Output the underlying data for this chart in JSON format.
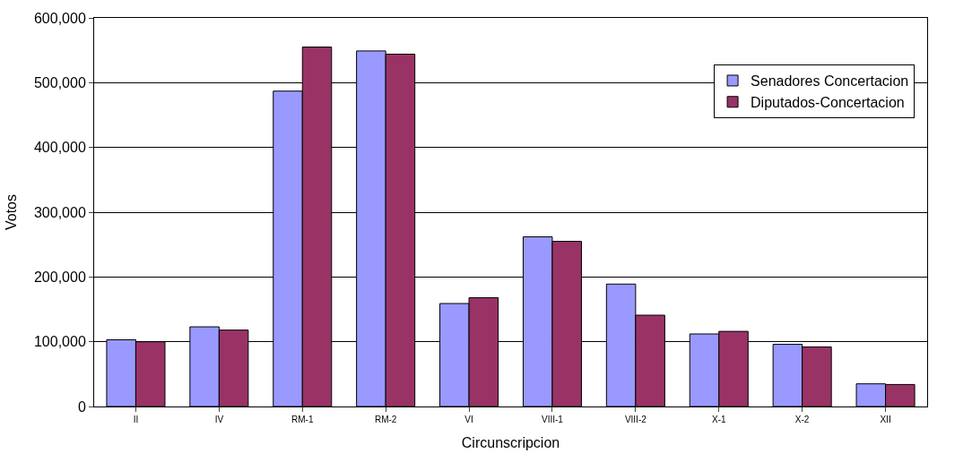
{
  "chart_data": {
    "type": "bar",
    "xlabel": "Circunscripcion",
    "ylabel": "Votos",
    "categories": [
      "II",
      "IV",
      "RM-1",
      "RM-2",
      "VI",
      "VIII-1",
      "VIII-2",
      "X-1",
      "X-2",
      "XII"
    ],
    "series": [
      {
        "name": "Senadores Concertacion",
        "color": "#9999ff",
        "values": [
          103000,
          123000,
          487000,
          549000,
          159000,
          262000,
          189000,
          112000,
          96000,
          35000
        ]
      },
      {
        "name": "Diputados-Concertacion",
        "color": "#993366",
        "values": [
          100000,
          118000,
          555000,
          544000,
          168000,
          255000,
          141000,
          116000,
          92000,
          34000
        ]
      }
    ],
    "ylim": [
      0,
      600000
    ],
    "yticks": [
      {
        "value": 0,
        "label": "0"
      },
      {
        "value": 100000,
        "label": "100,000"
      },
      {
        "value": 200000,
        "label": "200,000"
      },
      {
        "value": 300000,
        "label": "300,000"
      },
      {
        "value": 400000,
        "label": "400,000"
      },
      {
        "value": 500000,
        "label": "500,000"
      },
      {
        "value": 600000,
        "label": "600,000"
      }
    ],
    "grid": "y",
    "legend": "top right"
  }
}
